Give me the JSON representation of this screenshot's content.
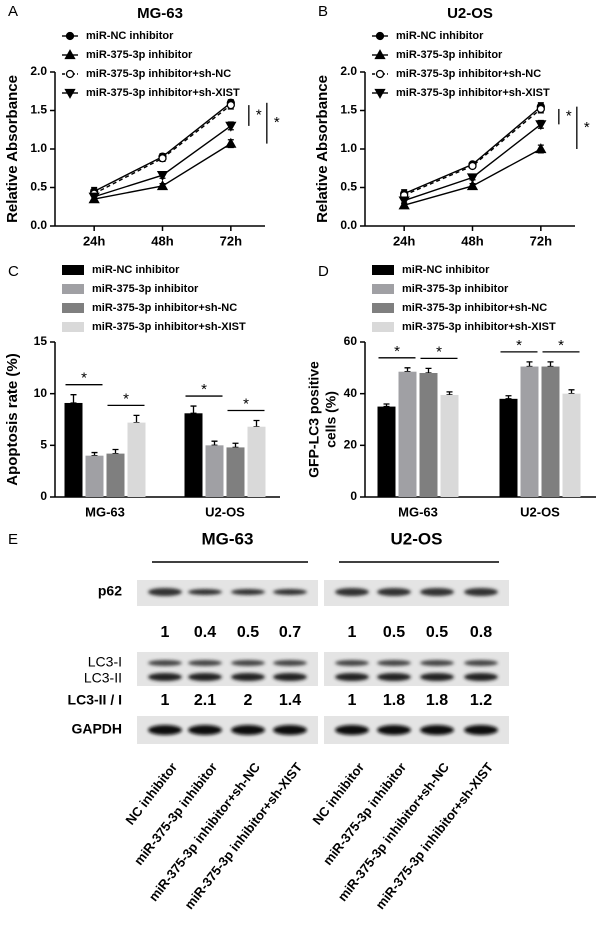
{
  "chart_data": [
    {
      "type": "line",
      "panel": "A",
      "title": "MG-63",
      "ylabel": "Relative Absorbance",
      "categories": [
        "24h",
        "48h",
        "72h"
      ],
      "ylim": [
        0,
        2
      ],
      "yticks": [
        {
          "value": 0,
          "label": "0.0"
        },
        0.5,
        {
          "value": 1,
          "label": "1.0"
        },
        1.5,
        {
          "value": 2,
          "label": "2.0"
        }
      ],
      "series": [
        {
          "name": "miR-NC inhibitor",
          "color": "#000000",
          "marker": "circle",
          "values": [
            0.45,
            0.9,
            1.6
          ],
          "errors": [
            0.05,
            0.04,
            0.04
          ]
        },
        {
          "name": "miR-375-3p inhibitor",
          "color": "#000000",
          "marker": "triangle",
          "values": [
            0.35,
            0.52,
            1.07
          ],
          "errors": [
            0.03,
            0.03,
            0.05
          ]
        },
        {
          "name": "miR-375-3p inhibitor+sh-NC",
          "color": "#000000",
          "marker": "open-circle",
          "dashed": true,
          "values": [
            0.42,
            0.88,
            1.57
          ],
          "errors": [
            0.04,
            0.04,
            0.05
          ]
        },
        {
          "name": "miR-375-3p inhibitor+sh-XIST",
          "color": "#000000",
          "marker": "inverted-triangle",
          "values": [
            0.38,
            0.66,
            1.3
          ],
          "errors": [
            0.04,
            0.04,
            0.05
          ]
        }
      ],
      "significance": [
        "*",
        "*"
      ]
    },
    {
      "type": "line",
      "panel": "B",
      "title": "U2-OS",
      "ylabel": "Relative Absorbance",
      "categories": [
        "24h",
        "48h",
        "72h"
      ],
      "ylim": [
        0,
        2
      ],
      "yticks": [
        {
          "value": 0,
          "label": "0.0"
        },
        0.5,
        {
          "value": 1,
          "label": "1.0"
        },
        1.5,
        {
          "value": 2,
          "label": "2.0"
        }
      ],
      "series": [
        {
          "name": "miR-NC inhibitor",
          "color": "#000000",
          "marker": "circle",
          "values": [
            0.42,
            0.8,
            1.55
          ],
          "errors": [
            0.05,
            0.03,
            0.05
          ]
        },
        {
          "name": "miR-375-3p inhibitor",
          "color": "#000000",
          "marker": "triangle",
          "values": [
            0.27,
            0.52,
            1.0
          ],
          "errors": [
            0.03,
            0.03,
            0.05
          ]
        },
        {
          "name": "miR-375-3p inhibitor+sh-NC",
          "color": "#000000",
          "marker": "open-circle",
          "dashed": true,
          "values": [
            0.4,
            0.78,
            1.52
          ],
          "errors": [
            0.04,
            0.03,
            0.05
          ]
        },
        {
          "name": "miR-375-3p inhibitor+sh-XIST",
          "color": "#000000",
          "marker": "inverted-triangle",
          "values": [
            0.33,
            0.63,
            1.32
          ],
          "errors": [
            0.04,
            0.03,
            0.05
          ]
        }
      ],
      "significance": [
        "*",
        "*"
      ]
    },
    {
      "type": "bar",
      "panel": "C",
      "ylabel": "Apoptosis rate (%)",
      "categories": [
        "MG-63",
        "U2-OS"
      ],
      "ylim": [
        0,
        15
      ],
      "yticks": [
        0,
        5,
        10,
        15
      ],
      "series": [
        {
          "name": "miR-NC inhibitor",
          "color": "#000000",
          "values": [
            9.1,
            8.1
          ],
          "errors": [
            0.8,
            0.7
          ]
        },
        {
          "name": "miR-375-3p inhibitor",
          "color": "#a0a0a4",
          "values": [
            4.0,
            5.0
          ],
          "errors": [
            0.3,
            0.4
          ]
        },
        {
          "name": "miR-375-3p inhibitor+sh-NC",
          "color": "#7f7f7f",
          "values": [
            4.2,
            4.8
          ],
          "errors": [
            0.4,
            0.4
          ]
        },
        {
          "name": "miR-375-3p inhibitor+sh-XIST",
          "color": "#d9d9d9",
          "values": [
            7.2,
            6.8
          ],
          "errors": [
            0.7,
            0.6
          ]
        }
      ],
      "significance": [
        "*",
        "*",
        "*",
        "*"
      ]
    },
    {
      "type": "bar",
      "panel": "D",
      "ylabel": [
        "GFP-LC3 positive",
        "cells (%)"
      ],
      "categories": [
        "MG-63",
        "U2-OS"
      ],
      "ylim": [
        0,
        60
      ],
      "yticks": [
        0,
        20,
        40,
        60
      ],
      "series": [
        {
          "name": "miR-NC inhibitor",
          "color": "#000000",
          "values": [
            35,
            38
          ],
          "errors": [
            1,
            1.2
          ]
        },
        {
          "name": "miR-375-3p inhibitor",
          "color": "#a0a0a4",
          "values": [
            48.5,
            50.5
          ],
          "errors": [
            1.5,
            1.8
          ]
        },
        {
          "name": "miR-375-3p inhibitor+sh-NC",
          "color": "#7f7f7f",
          "values": [
            48,
            50.5
          ],
          "errors": [
            1.8,
            1.8
          ]
        },
        {
          "name": "miR-375-3p inhibitor+sh-XIST",
          "color": "#d9d9d9",
          "values": [
            39.5,
            40
          ],
          "errors": [
            1.2,
            1.5
          ]
        }
      ],
      "significance": [
        "*",
        "*",
        "*",
        "*"
      ]
    }
  ],
  "blot": {
    "panel": "E",
    "row_labels": {
      "p62": "p62",
      "lc3_1": "LC3-I",
      "lc3_2": "LC3-II",
      "ratio": "LC3-II / I",
      "gapdh": "GAPDH"
    },
    "groups": [
      {
        "name": "MG-63",
        "p62": [
          1,
          0.4,
          0.5,
          0.7
        ],
        "ratio": [
          1,
          2.1,
          2,
          1.4
        ],
        "lanes": [
          "NC inhibitor",
          "miR-375-3p inhibitor",
          "miR-375-3p inhibitor+sh-NC",
          "miR-375-3p inhibitor+sh-XIST"
        ]
      },
      {
        "name": "U2-OS",
        "p62": [
          1,
          0.5,
          0.5,
          0.8
        ],
        "ratio": [
          1,
          1.8,
          1.8,
          1.2
        ],
        "lanes": [
          "NC inhibitor",
          "miR-375-3p inhibitor",
          "miR-375-3p inhibitor+sh-NC",
          "miR-375-3p inhibitor+sh-XIST"
        ]
      }
    ]
  }
}
